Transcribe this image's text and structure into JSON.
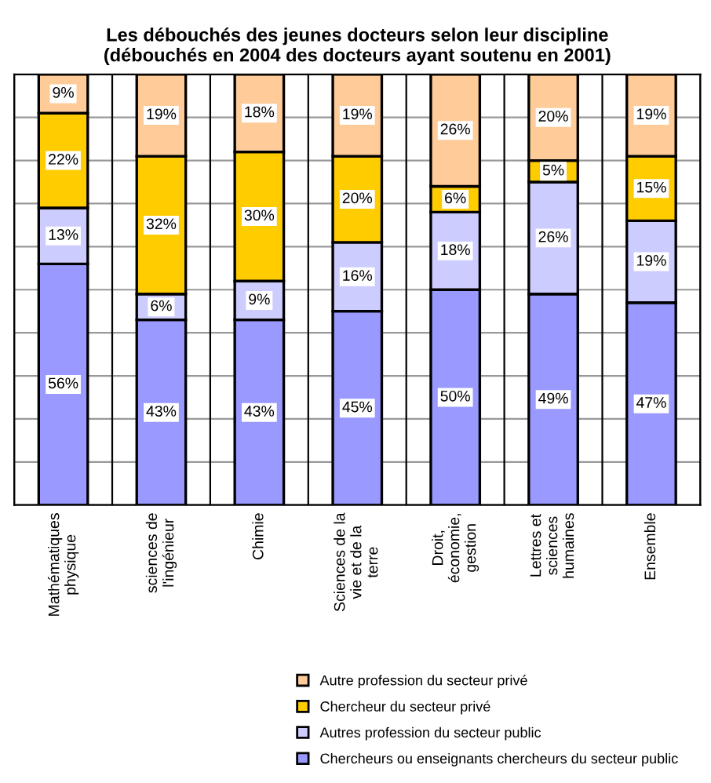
{
  "chart_data": {
    "type": "bar",
    "stacked": true,
    "title": "Les débouchés des jeunes docteurs selon leur discipline\n(débouchés en 2004 des docteurs ayant soutenu en 2001)",
    "categories": [
      "Mathématiques\nphysique",
      "sciences de\nl'ingénieur",
      "Chimie",
      "Sciences de la\nvie et de la\nterre",
      "Droit,\néconomie,\ngestion",
      "Lettres et\nsciences\nhumaines",
      "Ensemble"
    ],
    "series": [
      {
        "name": "Chercheurs ou enseignants chercheurs du secteur public",
        "color": "#9999ff",
        "values": [
          56,
          43,
          43,
          45,
          50,
          49,
          47
        ],
        "value_labels": [
          "56%",
          "43%",
          "43%",
          "45%",
          "50%",
          "49%",
          "47%"
        ]
      },
      {
        "name": "Autres profession du secteur public",
        "color": "#ccccff",
        "values": [
          13,
          6,
          9,
          16,
          18,
          26,
          19
        ],
        "value_labels": [
          "13%",
          "6%",
          "9%",
          "16%",
          "18%",
          "26%",
          "19%"
        ]
      },
      {
        "name": "Chercheur du secteur privé",
        "color": "#ffcc00",
        "values": [
          22,
          32,
          30,
          20,
          6,
          5,
          15
        ],
        "value_labels": [
          "22%",
          "32%",
          "30%",
          "20%",
          "6%",
          "5%",
          "15%"
        ]
      },
      {
        "name": "Autre profession du secteur privé",
        "color": "#ffcc99",
        "values": [
          9,
          19,
          18,
          19,
          26,
          20,
          19
        ],
        "value_labels": [
          "9%",
          "19%",
          "18%",
          "19%",
          "26%",
          "20%",
          "19%"
        ]
      }
    ],
    "ylim": [
      0,
      100
    ],
    "yticks": [
      {
        "value": 0,
        "label": null
      },
      {
        "value": 10,
        "label": null
      },
      {
        "value": 20,
        "label": null
      },
      {
        "value": 30,
        "label": null
      },
      {
        "value": 40,
        "label": null
      },
      {
        "value": 50,
        "label": null
      },
      {
        "value": 60,
        "label": null
      },
      {
        "value": 70,
        "label": null
      },
      {
        "value": 80,
        "label": null
      },
      {
        "value": 90,
        "label": null
      },
      {
        "value": 100,
        "label": null
      }
    ],
    "grid": "y",
    "legend": "bottom",
    "tick_labels": "x"
  }
}
